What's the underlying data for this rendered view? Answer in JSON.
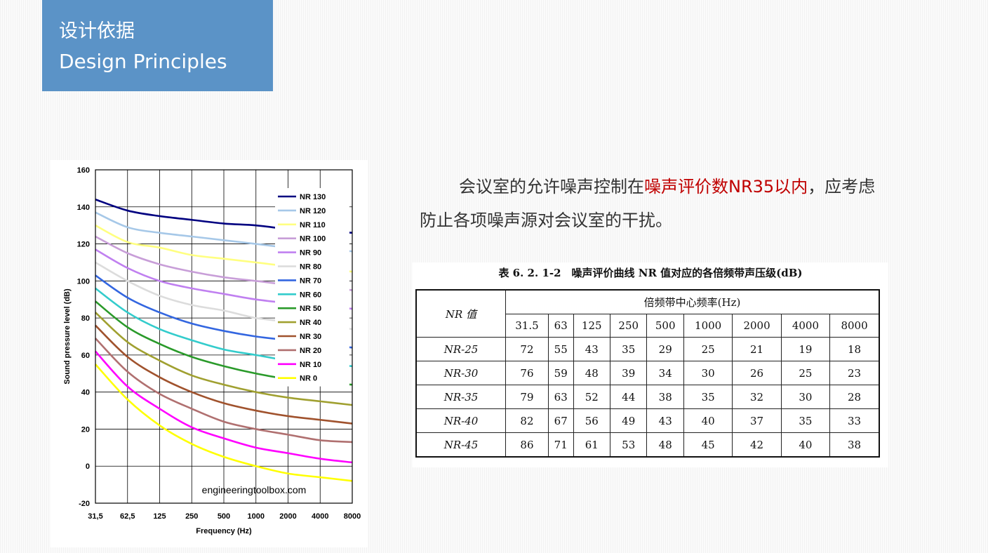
{
  "header": {
    "title_cn": "设计依据",
    "title_en": "Design Principles"
  },
  "paragraph": {
    "part1": "会议室的允许噪声控制在",
    "highlight": "噪声评价数NR35以内",
    "part2": "，应考虑防止各项噪声源对会议室的干扰。"
  },
  "table": {
    "caption": "表 6. 2. 1-2　噪声评价曲线 NR 值对应的各倍频带声压级(dB)",
    "row_header_label": "NR 值",
    "group_header": "倍频带中心频率(Hz)",
    "frequencies": [
      "31.5",
      "63",
      "125",
      "250",
      "500",
      "1000",
      "2000",
      "4000",
      "8000"
    ],
    "rows": [
      {
        "label": "NR-25",
        "values": [
          "72",
          "55",
          "43",
          "35",
          "29",
          "25",
          "21",
          "19",
          "18"
        ]
      },
      {
        "label": "NR-30",
        "values": [
          "76",
          "59",
          "48",
          "39",
          "34",
          "30",
          "26",
          "25",
          "23"
        ]
      },
      {
        "label": "NR-35",
        "values": [
          "79",
          "63",
          "52",
          "44",
          "38",
          "35",
          "32",
          "30",
          "28"
        ]
      },
      {
        "label": "NR-40",
        "values": [
          "82",
          "67",
          "56",
          "49",
          "43",
          "40",
          "37",
          "35",
          "33"
        ]
      },
      {
        "label": "NR-45",
        "values": [
          "86",
          "71",
          "61",
          "53",
          "48",
          "45",
          "42",
          "40",
          "38"
        ]
      }
    ]
  },
  "chart_data": {
    "type": "line",
    "title": "",
    "xlabel": "Frequency (Hz)",
    "ylabel": "Sound pressure level (dB)",
    "categories": [
      "31,5",
      "62,5",
      "125",
      "250",
      "500",
      "1000",
      "2000",
      "4000",
      "8000"
    ],
    "ylim": [
      -20,
      160
    ],
    "yticks": [
      "160",
      "140",
      "120",
      "100",
      "80",
      "60",
      "40",
      "20",
      "0",
      "-20"
    ],
    "grid": true,
    "legend_position": "top-right",
    "watermark": "engineeringtoolbox.com",
    "series": [
      {
        "name": "NR 130",
        "color": "#000080",
        "values": [
          144,
          138,
          135,
          133,
          131,
          130,
          128,
          127,
          126
        ]
      },
      {
        "name": "NR 120",
        "color": "#a6c8e8",
        "values": [
          137,
          129,
          126,
          124,
          122,
          120,
          118,
          117,
          116
        ]
      },
      {
        "name": "NR 110",
        "color": "#ffff80",
        "values": [
          130,
          121,
          118,
          114,
          112,
          110,
          108,
          107,
          105
        ]
      },
      {
        "name": "NR 100",
        "color": "#c89ed8",
        "values": [
          124,
          115,
          109,
          105,
          102,
          100,
          98,
          97,
          95
        ]
      },
      {
        "name": "NR 90",
        "color": "#c080f0",
        "values": [
          117,
          107,
          100,
          96,
          93,
          90,
          88,
          86,
          85
        ]
      },
      {
        "name": "NR 80",
        "color": "#dcdcdc",
        "values": [
          110,
          100,
          92,
          87,
          84,
          80,
          78,
          76,
          74
        ]
      },
      {
        "name": "NR 70",
        "color": "#3366e0",
        "values": [
          103,
          91,
          83,
          77,
          73,
          70,
          68,
          66,
          64
        ]
      },
      {
        "name": "NR 60",
        "color": "#33cccc",
        "values": [
          96,
          83,
          74,
          68,
          63,
          60,
          57,
          55,
          54
        ]
      },
      {
        "name": "NR 50",
        "color": "#2a9a2a",
        "values": [
          89,
          75,
          66,
          59,
          54,
          50,
          47,
          45,
          44
        ]
      },
      {
        "name": "NR 40",
        "color": "#a0a030",
        "values": [
          83,
          67,
          57,
          49,
          44,
          40,
          37,
          35,
          33
        ]
      },
      {
        "name": "NR 30",
        "color": "#a0522d",
        "values": [
          76,
          59,
          48,
          40,
          34,
          30,
          27,
          25,
          23
        ]
      },
      {
        "name": "NR 20",
        "color": "#b07070",
        "values": [
          69,
          51,
          39,
          31,
          24,
          20,
          17,
          14,
          13
        ]
      },
      {
        "name": "NR 10",
        "color": "#ff00ff",
        "values": [
          62,
          43,
          31,
          21,
          15,
          10,
          7,
          4,
          2
        ]
      },
      {
        "name": "NR 0",
        "color": "#ffff00",
        "values": [
          55,
          36,
          22,
          12,
          5,
          0,
          -4,
          -6,
          -8
        ]
      }
    ]
  }
}
